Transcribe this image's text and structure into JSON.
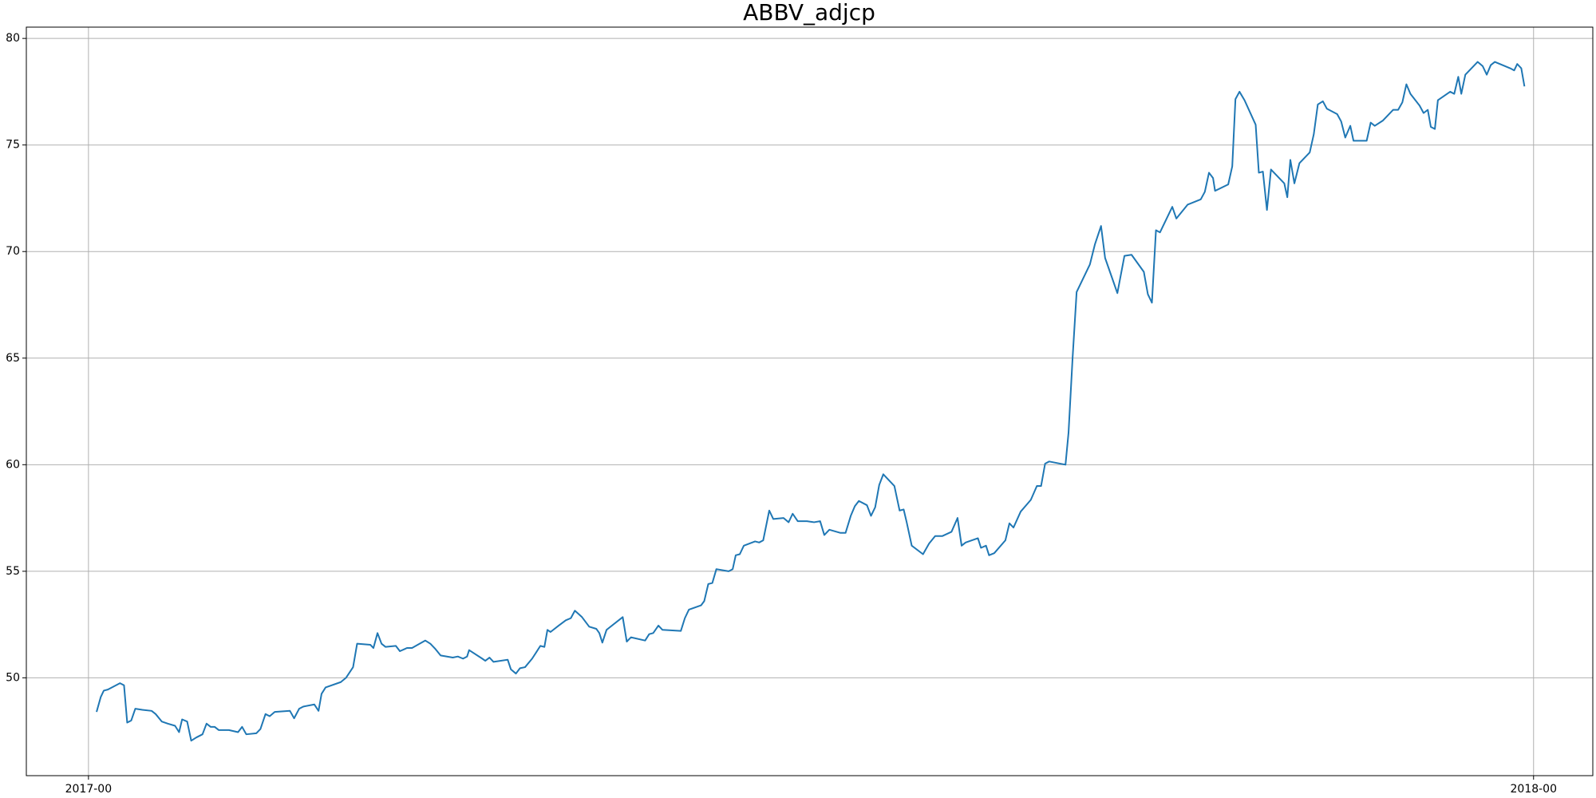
{
  "chart_data": {
    "type": "line",
    "title": "ABBV_adjcp",
    "color": "#1f77b4",
    "grid": true,
    "xlim": [
      2016.957,
      2018.041
    ],
    "ylim": [
      45.41,
      80.53
    ],
    "xticks": [
      {
        "value": 2017,
        "label": "2017-00"
      },
      {
        "value": 2018,
        "label": "2018-00"
      }
    ],
    "yticks": [
      50,
      55,
      60,
      65,
      70,
      75,
      80
    ],
    "x": [
      2017.0056,
      2017.0085,
      2017.0106,
      2017.0134,
      2017.0176,
      2017.0218,
      2017.0246,
      2017.0268,
      2017.0296,
      2017.0324,
      2017.0373,
      2017.0437,
      2017.0465,
      2017.0507,
      2017.0549,
      2017.0599,
      2017.0627,
      2017.0648,
      2017.0683,
      2017.0711,
      2017.0746,
      2017.0789,
      2017.0817,
      2017.0845,
      2017.0873,
      2017.0901,
      2017.0972,
      2017.1035,
      2017.1063,
      2017.1092,
      2017.1162,
      2017.119,
      2017.1225,
      2017.1254,
      2017.1289,
      2017.1394,
      2017.1423,
      2017.1458,
      2017.1486,
      2017.1563,
      2017.1592,
      2017.1613,
      2017.1641,
      2017.1746,
      2017.1782,
      2017.1831,
      2017.1859,
      2017.1951,
      2017.1972,
      2017.2,
      2017.2028,
      2017.2056,
      2017.2127,
      2017.2155,
      2017.2204,
      2017.2239,
      2017.2331,
      2017.2366,
      2017.2401,
      2017.2437,
      2017.2521,
      2017.2556,
      2017.2592,
      2017.262,
      2017.2634,
      2017.2725,
      2017.2746,
      2017.2775,
      2017.2803,
      2017.2901,
      2017.2923,
      2017.2958,
      2017.2986,
      2017.3021,
      2017.307,
      2017.3099,
      2017.3127,
      2017.3155,
      2017.3176,
      2017.3197,
      2017.3254,
      2017.3303,
      2017.3338,
      2017.3366,
      2017.3415,
      2017.3465,
      2017.3514,
      2017.3535,
      2017.3556,
      2017.3585,
      2017.3697,
      2017.3725,
      2017.3754,
      2017.3852,
      2017.388,
      2017.3908,
      2017.3944,
      2017.3972,
      2017.4099,
      2017.4127,
      2017.4155,
      2017.4239,
      2017.4261,
      2017.4289,
      2017.4317,
      2017.4345,
      2017.443,
      2017.4458,
      2017.4479,
      2017.4507,
      2017.4535,
      2017.4613,
      2017.4641,
      2017.4669,
      2017.4711,
      2017.4739,
      2017.481,
      2017.4845,
      2017.4873,
      2017.4908,
      2017.4972,
      2017.5021,
      2017.5063,
      2017.5092,
      2017.5127,
      2017.5204,
      2017.5239,
      2017.5275,
      2017.5303,
      2017.5331,
      2017.5387,
      2017.5415,
      2017.5444,
      2017.5472,
      2017.55,
      2017.5577,
      2017.5613,
      2017.5641,
      2017.5662,
      2017.5697,
      2017.5775,
      2017.5817,
      2017.5859,
      2017.5908,
      2017.5972,
      2017.6014,
      2017.6042,
      2017.607,
      2017.6155,
      2017.6176,
      2017.6211,
      2017.6232,
      2017.6268,
      2017.6345,
      2017.6373,
      2017.6401,
      2017.6451,
      2017.6521,
      2017.6563,
      2017.6592,
      2017.662,
      2017.6648,
      2017.6761,
      2017.6782,
      2017.681,
      2017.6838,
      2017.693,
      2017.6965,
      2017.7007,
      2017.7035,
      2017.712,
      2017.7169,
      2017.7218,
      2017.7303,
      2017.7331,
      2017.7359,
      2017.7387,
      2017.7415,
      2017.75,
      2017.7528,
      2017.7606,
      2017.7697,
      2017.7725,
      2017.7754,
      2017.7782,
      2017.7796,
      2017.7887,
      2017.7915,
      2017.7937,
      2017.7965,
      2017.8,
      2017.8077,
      2017.8099,
      2017.8127,
      2017.8155,
      2017.8183,
      2017.8275,
      2017.8296,
      2017.8317,
      2017.8345,
      2017.838,
      2017.8451,
      2017.8479,
      2017.8507,
      2017.8542,
      2017.857,
      2017.8641,
      2017.8669,
      2017.8697,
      2017.8732,
      2017.8754,
      2017.8845,
      2017.8873,
      2017.8901,
      2017.8958,
      2017.9028,
      2017.9063,
      2017.9092,
      2017.912,
      2017.9148,
      2017.9211,
      2017.9239,
      2017.9268,
      2017.9289,
      2017.9317,
      2017.9338,
      2017.9423,
      2017.9451,
      2017.9479,
      2017.95,
      2017.9528,
      2017.9613,
      2017.9648,
      2017.9676,
      2017.9704,
      2017.9732,
      2017.9838,
      2017.9866,
      2017.9887,
      2017.9915,
      2017.9937
    ],
    "values": [
      48.4,
      49.1,
      49.4,
      49.45,
      49.6,
      49.75,
      49.65,
      47.9,
      48.0,
      48.55,
      48.5,
      48.45,
      48.3,
      47.95,
      47.85,
      47.75,
      47.45,
      48.05,
      47.95,
      47.05,
      47.2,
      47.35,
      47.85,
      47.7,
      47.7,
      47.55,
      47.55,
      47.45,
      47.7,
      47.35,
      47.4,
      47.6,
      48.3,
      48.2,
      48.4,
      48.45,
      48.1,
      48.55,
      48.65,
      48.75,
      48.45,
      49.25,
      49.55,
      49.8,
      50.0,
      50.5,
      51.6,
      51.55,
      51.4,
      52.1,
      51.6,
      51.45,
      51.5,
      51.25,
      51.4,
      51.4,
      51.75,
      51.6,
      51.35,
      51.05,
      50.95,
      51.0,
      50.9,
      51.0,
      51.3,
      50.9,
      50.8,
      50.95,
      50.75,
      50.85,
      50.4,
      50.2,
      50.45,
      50.5,
      50.9,
      51.2,
      51.5,
      51.45,
      52.25,
      52.15,
      52.45,
      52.7,
      52.8,
      53.15,
      52.85,
      52.4,
      52.3,
      52.1,
      51.65,
      52.25,
      52.85,
      51.7,
      51.9,
      51.75,
      52.05,
      52.1,
      52.45,
      52.25,
      52.2,
      52.8,
      53.2,
      53.4,
      53.6,
      54.4,
      54.45,
      55.1,
      55.0,
      55.1,
      55.75,
      55.8,
      56.2,
      56.4,
      56.35,
      56.45,
      57.85,
      57.45,
      57.5,
      57.3,
      57.7,
      57.35,
      57.35,
      57.3,
      57.35,
      56.7,
      56.95,
      56.8,
      56.8,
      57.6,
      58.05,
      58.3,
      58.1,
      57.6,
      58.0,
      59.05,
      59.55,
      59.0,
      57.85,
      57.9,
      57.3,
      56.2,
      55.8,
      56.3,
      56.65,
      56.65,
      56.85,
      57.5,
      56.2,
      56.35,
      56.55,
      56.1,
      56.2,
      55.75,
      55.85,
      56.45,
      57.25,
      57.05,
      57.8,
      58.35,
      59.0,
      59.0,
      60.05,
      60.15,
      60.0,
      61.5,
      65.0,
      68.1,
      69.4,
      70.35,
      71.2,
      69.7,
      68.05,
      69.8,
      69.85,
      69.05,
      68.0,
      67.6,
      71.0,
      70.9,
      72.1,
      71.55,
      72.2,
      72.45,
      72.8,
      73.7,
      73.45,
      72.85,
      73.15,
      74.0,
      77.15,
      77.5,
      77.1,
      75.95,
      73.7,
      73.75,
      71.95,
      73.85,
      73.2,
      72.55,
      74.3,
      73.2,
      74.15,
      74.65,
      75.5,
      76.9,
      77.05,
      76.7,
      76.45,
      76.1,
      75.35,
      75.9,
      75.2,
      75.2,
      76.05,
      75.9,
      76.15,
      76.65,
      76.65,
      77.0,
      77.85,
      77.4,
      76.85,
      76.5,
      76.65,
      75.85,
      75.75,
      77.1,
      77.5,
      77.4,
      78.2,
      77.4,
      78.3,
      78.9,
      78.7,
      78.3,
      78.75,
      78.9,
      78.6,
      78.5,
      78.8,
      78.6,
      77.75
    ]
  }
}
